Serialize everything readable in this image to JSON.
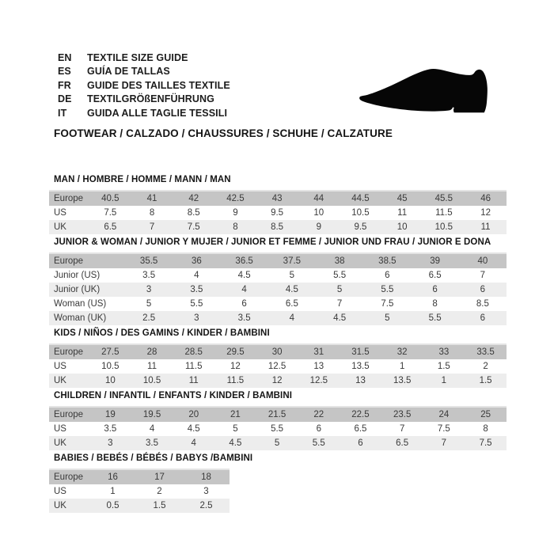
{
  "header": {
    "languages": [
      {
        "code": "EN",
        "label": "TEXTILE SIZE GUIDE"
      },
      {
        "code": "ES",
        "label": "GUÍA DE TALLAS"
      },
      {
        "code": "FR",
        "label": "GUIDE DES TAILLES TEXTILE"
      },
      {
        "code": "DE",
        "label": "TEXTILGRÖßENFÜHRUNG"
      },
      {
        "code": "IT",
        "label": "GUIDA ALLE TAGLIE TESSILI"
      }
    ],
    "shoe_icon": "dress-shoe-silhouette",
    "section_heading": "FOOTWEAR / CALZADO / CHAUSSURES / SCHUHE / CALZATURE"
  },
  "colors": {
    "header_row_bg": "#c5c5c5",
    "alt_row_bg": "#ededed",
    "row_bg": "#ffffff",
    "edge_line": "#e4e4e4",
    "shoe_fill": "#060606"
  },
  "tables": [
    {
      "title": "MAN / HOMBRE / HOMME / MANN / MAN",
      "rows": [
        {
          "label": "Europe",
          "style": "header",
          "values": [
            "40.5",
            "41",
            "42",
            "42.5",
            "43",
            "44",
            "44.5",
            "45",
            "45.5",
            "46"
          ]
        },
        {
          "label": "US",
          "values": [
            "7.5",
            "8",
            "8.5",
            "9",
            "9.5",
            "10",
            "10.5",
            "11",
            "11.5",
            "12"
          ]
        },
        {
          "label": "UK",
          "values": [
            "6.5",
            "7",
            "7.5",
            "8",
            "8.5",
            "9",
            "9.5",
            "10",
            "10.5",
            "11"
          ]
        }
      ]
    },
    {
      "title": "JUNIOR & WOMAN / JUNIOR Y MUJER / JUNIOR ET FEMME / JUNIOR UND FRAU / JUNIOR E DONA",
      "rows": [
        {
          "label": "Europe",
          "style": "header",
          "values": [
            "35.5",
            "36",
            "36.5",
            "37.5",
            "38",
            "38.5",
            "39",
            "40"
          ]
        },
        {
          "label": "Junior (US)",
          "values": [
            "3.5",
            "4",
            "4.5",
            "5",
            "5.5",
            "6",
            "6.5",
            "7"
          ]
        },
        {
          "label": "Junior (UK)",
          "values": [
            "3",
            "3.5",
            "4",
            "4.5",
            "5",
            "5.5",
            "6",
            "6"
          ]
        },
        {
          "label": "Woman (US)",
          "values": [
            "5",
            "5.5",
            "6",
            "6.5",
            "7",
            "7.5",
            "8",
            "8.5"
          ]
        },
        {
          "label": "Woman (UK)",
          "values": [
            "2.5",
            "3",
            "3.5",
            "4",
            "4.5",
            "5",
            "5.5",
            "6"
          ]
        }
      ]
    },
    {
      "title": "KIDS / NIÑOS / DES GAMINS / KINDER / BAMBINI",
      "rows": [
        {
          "label": "Europe",
          "style": "header",
          "values": [
            "27.5",
            "28",
            "28.5",
            "29.5",
            "30",
            "31",
            "31.5",
            "32",
            "33",
            "33.5"
          ]
        },
        {
          "label": "US",
          "values": [
            "10.5",
            "11",
            "11.5",
            "12",
            "12.5",
            "13",
            "13.5",
            "1",
            "1.5",
            "2"
          ]
        },
        {
          "label": "UK",
          "values": [
            "10",
            "10.5",
            "11",
            "11.5",
            "12",
            "12.5",
            "13",
            "13.5",
            "1",
            "1.5"
          ]
        }
      ]
    },
    {
      "title": "CHILDREN / INFANTIL / ENFANTS / KINDER / BAMBINI",
      "rows": [
        {
          "label": "Europe",
          "style": "header",
          "values": [
            "19",
            "19.5",
            "20",
            "21",
            "21.5",
            "22",
            "22.5",
            "23.5",
            "24",
            "25"
          ]
        },
        {
          "label": "US",
          "values": [
            "3.5",
            "4",
            "4.5",
            "5",
            "5.5",
            "6",
            "6.5",
            "7",
            "7.5",
            "8"
          ]
        },
        {
          "label": "UK",
          "values": [
            "3",
            "3.5",
            "4",
            "4.5",
            "5",
            "5.5",
            "6",
            "6.5",
            "7",
            "7.5"
          ]
        }
      ]
    },
    {
      "title": "BABIES / BEBÉS / BÉBÉS / BABYS /BAMBINI",
      "rows": [
        {
          "label": "Europe",
          "style": "header",
          "values": [
            "16",
            "17",
            "18"
          ]
        },
        {
          "label": "US",
          "values": [
            "1",
            "2",
            "3"
          ]
        },
        {
          "label": "UK",
          "values": [
            "0.5",
            "1.5",
            "2.5"
          ]
        }
      ]
    }
  ]
}
